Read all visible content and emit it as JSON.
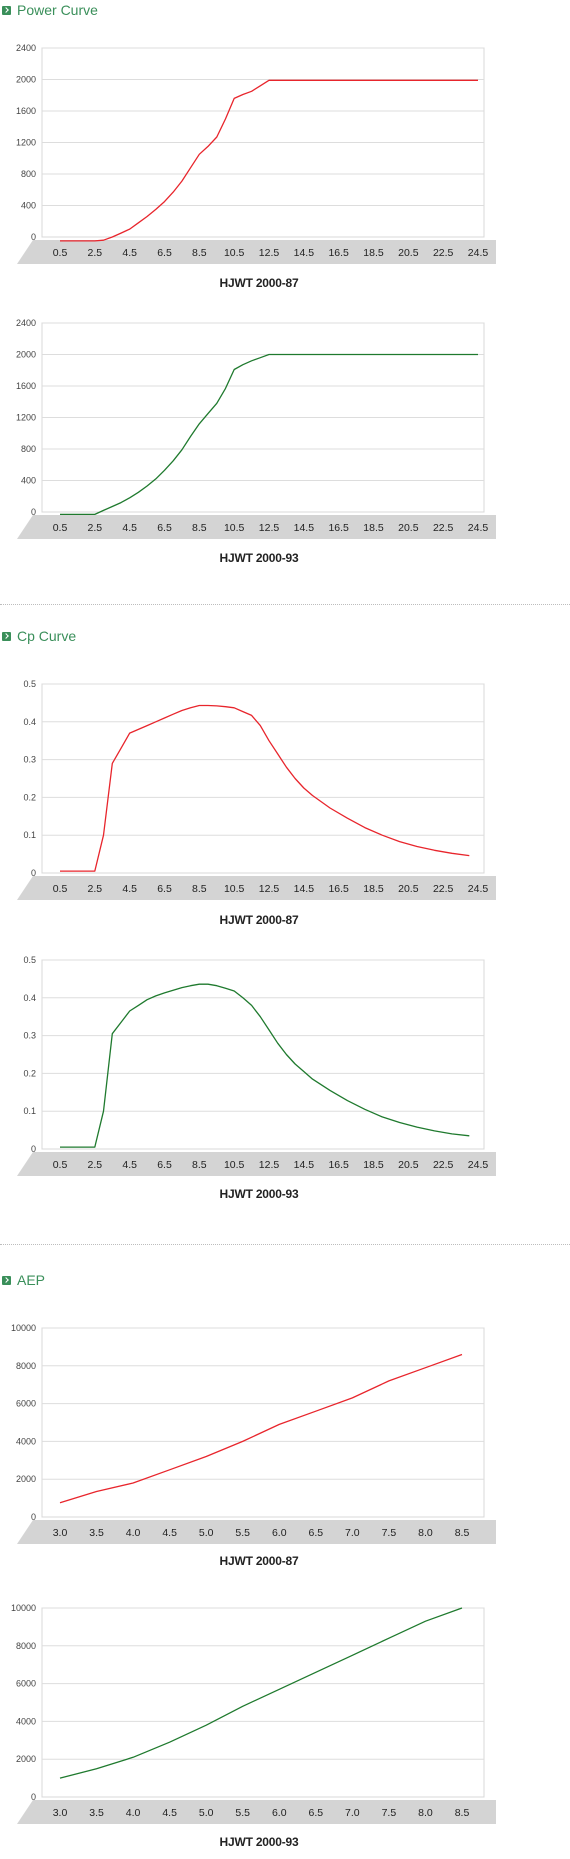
{
  "sections": [
    {
      "title": "Power Curve",
      "icon": "arrow-right-icon"
    },
    {
      "title": "Cp Curve",
      "icon": "arrow-right-icon"
    },
    {
      "title": "AEP",
      "icon": "arrow-right-icon"
    }
  ],
  "colors": {
    "accent": "#3a8f5a",
    "series_red": "#e8252c",
    "series_green": "#1f7a2e",
    "axis_band": "#d4d4d4",
    "grid": "#dddddd"
  },
  "chart_data": [
    {
      "type": "line",
      "caption": "HJWT 2000-87",
      "color": "#e8252c",
      "yticks": [
        0,
        400,
        800,
        1200,
        1600,
        2000,
        2400
      ],
      "ylim": [
        0,
        2400
      ],
      "xticks": [
        "0.5",
        "2.5",
        "4.5",
        "6.5",
        "8.5",
        "10.5",
        "12.5",
        "14.5",
        "16.5",
        "18.5",
        "20.5",
        "22.5",
        "24.5"
      ],
      "xlim": [
        0.5,
        24.5
      ],
      "x": [
        0.5,
        1.5,
        2.5,
        3.0,
        3.5,
        4.0,
        4.5,
        5.0,
        5.5,
        6.0,
        6.5,
        7.0,
        7.5,
        8.0,
        8.5,
        9.0,
        9.5,
        10.0,
        10.5,
        11.0,
        11.5,
        12.0,
        12.5,
        13.5,
        14.5,
        24.5
      ],
      "y": [
        -50,
        -50,
        -50,
        -40,
        0,
        50,
        100,
        180,
        260,
        350,
        450,
        570,
        710,
        880,
        1050,
        1150,
        1270,
        1500,
        1760,
        1810,
        1850,
        1920,
        1990,
        1990,
        1990,
        1990
      ]
    },
    {
      "type": "line",
      "caption": "HJWT 2000-93",
      "color": "#1f7a2e",
      "yticks": [
        0,
        400,
        800,
        1200,
        1600,
        2000,
        2400
      ],
      "ylim": [
        0,
        2400
      ],
      "xticks": [
        "0.5",
        "2.5",
        "4.5",
        "6.5",
        "8.5",
        "10.5",
        "12.5",
        "14.5",
        "16.5",
        "18.5",
        "20.5",
        "22.5",
        "24.5"
      ],
      "xlim": [
        0.5,
        24.5
      ],
      "x": [
        0.5,
        1.5,
        2.5,
        3.0,
        3.5,
        4.0,
        4.5,
        5.0,
        5.5,
        6.0,
        6.5,
        7.0,
        7.5,
        8.0,
        8.5,
        9.0,
        9.5,
        10.0,
        10.5,
        11.0,
        11.5,
        12.0,
        12.5,
        13.5,
        14.5,
        24.5
      ],
      "y": [
        -30,
        -30,
        -30,
        20,
        70,
        120,
        180,
        250,
        330,
        420,
        530,
        650,
        790,
        960,
        1120,
        1250,
        1380,
        1570,
        1810,
        1870,
        1920,
        1960,
        2000,
        2000,
        2000,
        2000
      ]
    },
    {
      "type": "line",
      "caption": "HJWT 2000-87",
      "color": "#e8252c",
      "yticks": [
        "0",
        "0.1",
        "0.2",
        "0.3",
        "0.4",
        "0.5"
      ],
      "ylim": [
        0,
        0.5
      ],
      "xticks": [
        "0.5",
        "2.5",
        "4.5",
        "6.5",
        "8.5",
        "10.5",
        "12.5",
        "14.5",
        "16.5",
        "18.5",
        "20.5",
        "22.5",
        "24.5"
      ],
      "xlim": [
        0.5,
        24.5
      ],
      "x": [
        0.5,
        1.5,
        2.5,
        3.0,
        3.5,
        4.0,
        4.5,
        5.0,
        5.5,
        6.0,
        6.5,
        7.0,
        7.5,
        8.0,
        8.5,
        9.0,
        9.5,
        10.0,
        10.5,
        11.0,
        11.5,
        12.0,
        12.5,
        13.0,
        13.5,
        14.0,
        14.5,
        15.0,
        16.0,
        17.0,
        18.0,
        19.0,
        20.0,
        21.0,
        22.0,
        23.0,
        24.0
      ],
      "y": [
        0.005,
        0.005,
        0.005,
        0.1,
        0.29,
        0.33,
        0.37,
        0.38,
        0.39,
        0.4,
        0.41,
        0.42,
        0.43,
        0.437,
        0.443,
        0.443,
        0.442,
        0.44,
        0.437,
        0.427,
        0.417,
        0.39,
        0.35,
        0.315,
        0.28,
        0.25,
        0.225,
        0.205,
        0.172,
        0.145,
        0.12,
        0.1,
        0.083,
        0.07,
        0.06,
        0.052,
        0.046
      ]
    },
    {
      "type": "line",
      "caption": "HJWT 2000-93",
      "color": "#1f7a2e",
      "yticks": [
        "0",
        "0.1",
        "0.2",
        "0.3",
        "0.4",
        "0.5"
      ],
      "ylim": [
        0,
        0.5
      ],
      "xticks": [
        "0.5",
        "2.5",
        "4.5",
        "6.5",
        "8.5",
        "10.5",
        "12.5",
        "14.5",
        "16.5",
        "18.5",
        "20.5",
        "22.5",
        "24.5"
      ],
      "xlim": [
        0.5,
        24.5
      ],
      "x": [
        0.5,
        1.5,
        2.5,
        3.0,
        3.5,
        4.0,
        4.5,
        5.0,
        5.5,
        6.0,
        6.5,
        7.0,
        7.5,
        8.0,
        8.5,
        9.0,
        9.5,
        10.0,
        10.5,
        11.0,
        11.5,
        12.0,
        12.5,
        13.0,
        13.5,
        14.0,
        14.5,
        15.0,
        16.0,
        17.0,
        18.0,
        19.0,
        20.0,
        21.0,
        22.0,
        23.0,
        24.0
      ],
      "y": [
        0.005,
        0.005,
        0.005,
        0.1,
        0.305,
        0.335,
        0.365,
        0.38,
        0.395,
        0.405,
        0.413,
        0.42,
        0.427,
        0.432,
        0.436,
        0.436,
        0.432,
        0.425,
        0.418,
        0.4,
        0.38,
        0.35,
        0.315,
        0.28,
        0.25,
        0.225,
        0.205,
        0.185,
        0.155,
        0.128,
        0.105,
        0.085,
        0.07,
        0.058,
        0.048,
        0.04,
        0.035
      ]
    },
    {
      "type": "line",
      "caption": "HJWT 2000-87",
      "color": "#e8252c",
      "yticks": [
        0,
        2000,
        4000,
        6000,
        8000,
        10000
      ],
      "ylim": [
        0,
        10000
      ],
      "xticks": [
        "3.0",
        "3.5",
        "4.0",
        "4.5",
        "5.0",
        "5.5",
        "6.0",
        "6.5",
        "7.0",
        "7.5",
        "8.0",
        "8.5"
      ],
      "xlim": [
        3.0,
        8.5
      ],
      "x": [
        3.0,
        3.5,
        4.0,
        4.5,
        5.0,
        5.5,
        6.0,
        6.5,
        7.0,
        7.5,
        8.0,
        8.5
      ],
      "y": [
        750,
        1350,
        1800,
        2500,
        3200,
        4000,
        4900,
        5600,
        6300,
        7200,
        7900,
        8600
      ]
    },
    {
      "type": "line",
      "caption": "HJWT 2000-93",
      "color": "#1f7a2e",
      "yticks": [
        0,
        2000,
        4000,
        6000,
        8000,
        10000
      ],
      "ylim": [
        0,
        10000
      ],
      "xticks": [
        "3.0",
        "3.5",
        "4.0",
        "4.5",
        "5.0",
        "5.5",
        "6.0",
        "6.5",
        "7.0",
        "7.5",
        "8.0",
        "8.5"
      ],
      "xlim": [
        3.0,
        8.5
      ],
      "x": [
        3.0,
        3.5,
        4.0,
        4.5,
        5.0,
        5.5,
        6.0,
        6.5,
        7.0,
        7.5,
        8.0,
        8.5
      ],
      "y": [
        1000,
        1500,
        2100,
        2900,
        3800,
        4800,
        5700,
        6600,
        7500,
        8400,
        9300,
        10000
      ]
    }
  ]
}
